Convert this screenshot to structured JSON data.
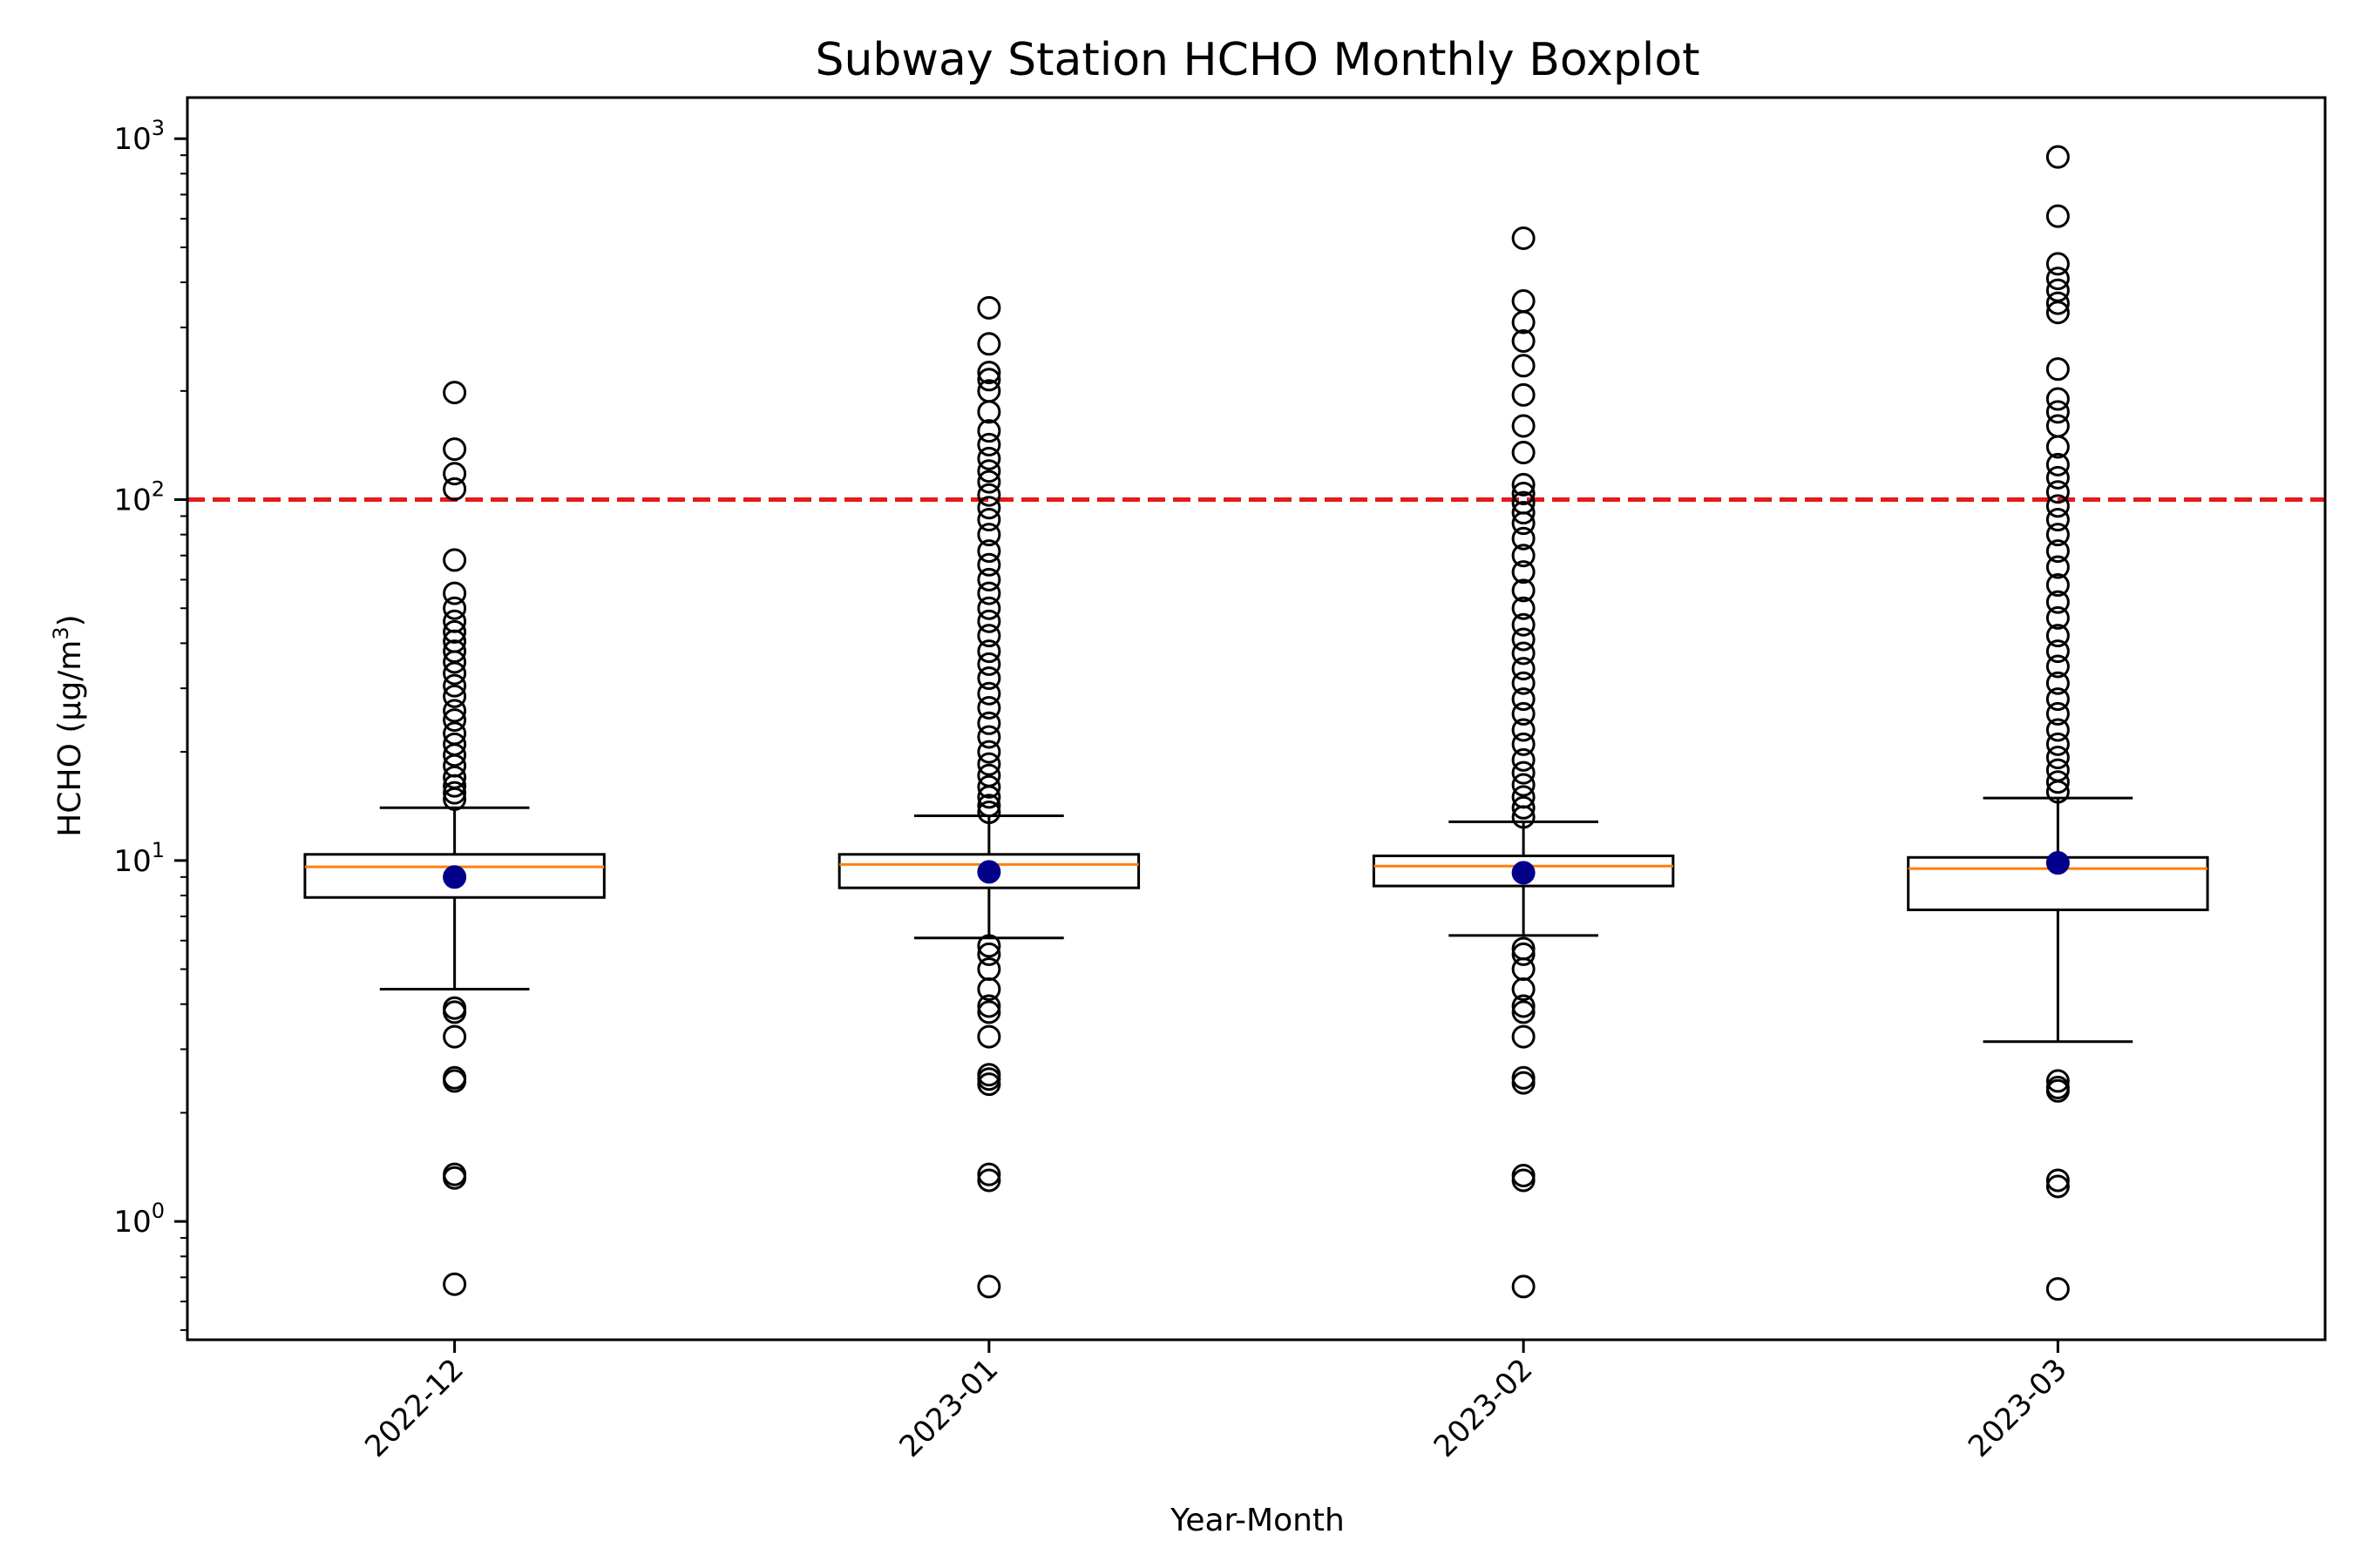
{
  "chart_data": {
    "type": "boxplot",
    "title": "Subway Station HCHO Monthly Boxplot",
    "xlabel": "Year-Month",
    "ylabel": "HCHO (µg/m³)",
    "ylabel_parts": {
      "main": "HCHO (µg/m",
      "sup": "3",
      "end": ")"
    },
    "yscale": "log",
    "ylim": [
      0.47,
      1300
    ],
    "yticks": [
      {
        "value": 1,
        "base": "10",
        "exp": "0"
      },
      {
        "value": 10,
        "base": "10",
        "exp": "1"
      },
      {
        "value": 100,
        "base": "10",
        "exp": "2"
      },
      {
        "value": 1000,
        "base": "10",
        "exp": "3"
      }
    ],
    "threshold": {
      "value": 100,
      "color": "#e41a1c",
      "style": "dashed"
    },
    "grid": false,
    "colors": {
      "box": "#000000",
      "median": "#ff7f0e",
      "mean": "#00008b",
      "flier": "#000000"
    },
    "categories": [
      "2022-12",
      "2023-01",
      "2023-02",
      "2023-03"
    ],
    "boxes": [
      {
        "category": "2022-12",
        "whisker_low": 4.4,
        "q1": 7.9,
        "median": 9.6,
        "q3": 10.4,
        "whisker_high": 14.0,
        "mean": 9.0,
        "fliers": [
          0.67,
          1.32,
          1.35,
          2.45,
          2.5,
          3.25,
          3.8,
          3.9,
          14.8,
          15.4,
          16.1,
          17.0,
          18.3,
          19.6,
          21.0,
          22.5,
          24.5,
          26.0,
          28.5,
          30.5,
          33.0,
          35.5,
          38.0,
          40.5,
          43.0,
          46.0,
          50.0,
          55.0,
          68.0,
          107.0,
          118.0,
          138.0,
          198.0
        ]
      },
      {
        "category": "2023-01",
        "whisker_low": 6.1,
        "q1": 8.4,
        "median": 9.75,
        "q3": 10.4,
        "whisker_high": 13.3,
        "mean": 9.3,
        "fliers": [
          0.66,
          1.3,
          1.35,
          2.4,
          2.48,
          2.55,
          3.25,
          3.8,
          3.95,
          4.4,
          5.0,
          5.5,
          5.8,
          13.6,
          14.2,
          15.0,
          16.0,
          17.2,
          18.5,
          20.0,
          22.0,
          24.0,
          26.5,
          29.0,
          32.0,
          35.0,
          38.0,
          42.0,
          46.0,
          50.0,
          55.0,
          60.0,
          66.0,
          72.0,
          80.0,
          88.0,
          95.0,
          103.0,
          112.0,
          120.0,
          130.0,
          142.0,
          155.0,
          175.0,
          200.0,
          215.0,
          225.0,
          270.0,
          340.0
        ]
      },
      {
        "category": "2023-02",
        "whisker_low": 6.2,
        "q1": 8.5,
        "median": 9.65,
        "q3": 10.3,
        "whisker_high": 12.8,
        "mean": 9.25,
        "fliers": [
          0.66,
          1.3,
          1.34,
          2.42,
          2.5,
          3.25,
          3.8,
          3.95,
          4.4,
          5.0,
          5.5,
          5.7,
          13.2,
          14.0,
          15.0,
          16.2,
          17.5,
          19.0,
          21.0,
          23.0,
          25.5,
          28.0,
          31.0,
          34.0,
          37.5,
          41.0,
          45.0,
          50.0,
          56.0,
          63.0,
          70.0,
          78.0,
          86.0,
          92.0,
          98.0,
          104.0,
          110.0,
          135.0,
          160.0,
          195.0,
          235.0,
          275.0,
          310.0,
          355.0,
          530.0
        ]
      },
      {
        "category": "2023-03",
        "whisker_low": 3.15,
        "q1": 7.3,
        "median": 9.5,
        "q3": 10.2,
        "whisker_high": 14.9,
        "mean": 9.85,
        "fliers": [
          0.65,
          1.25,
          1.3,
          2.3,
          2.35,
          2.45,
          15.5,
          16.5,
          17.8,
          19.3,
          21.0,
          23.0,
          25.5,
          28.0,
          31.0,
          34.5,
          38.0,
          42.0,
          47.0,
          52.0,
          58.0,
          65.0,
          72.0,
          80.0,
          88.0,
          96.0,
          105.0,
          115.0,
          125.0,
          140.0,
          160.0,
          175.0,
          190.0,
          230.0,
          330.0,
          350.0,
          380.0,
          410.0,
          450.0,
          610.0,
          890.0
        ]
      }
    ]
  }
}
